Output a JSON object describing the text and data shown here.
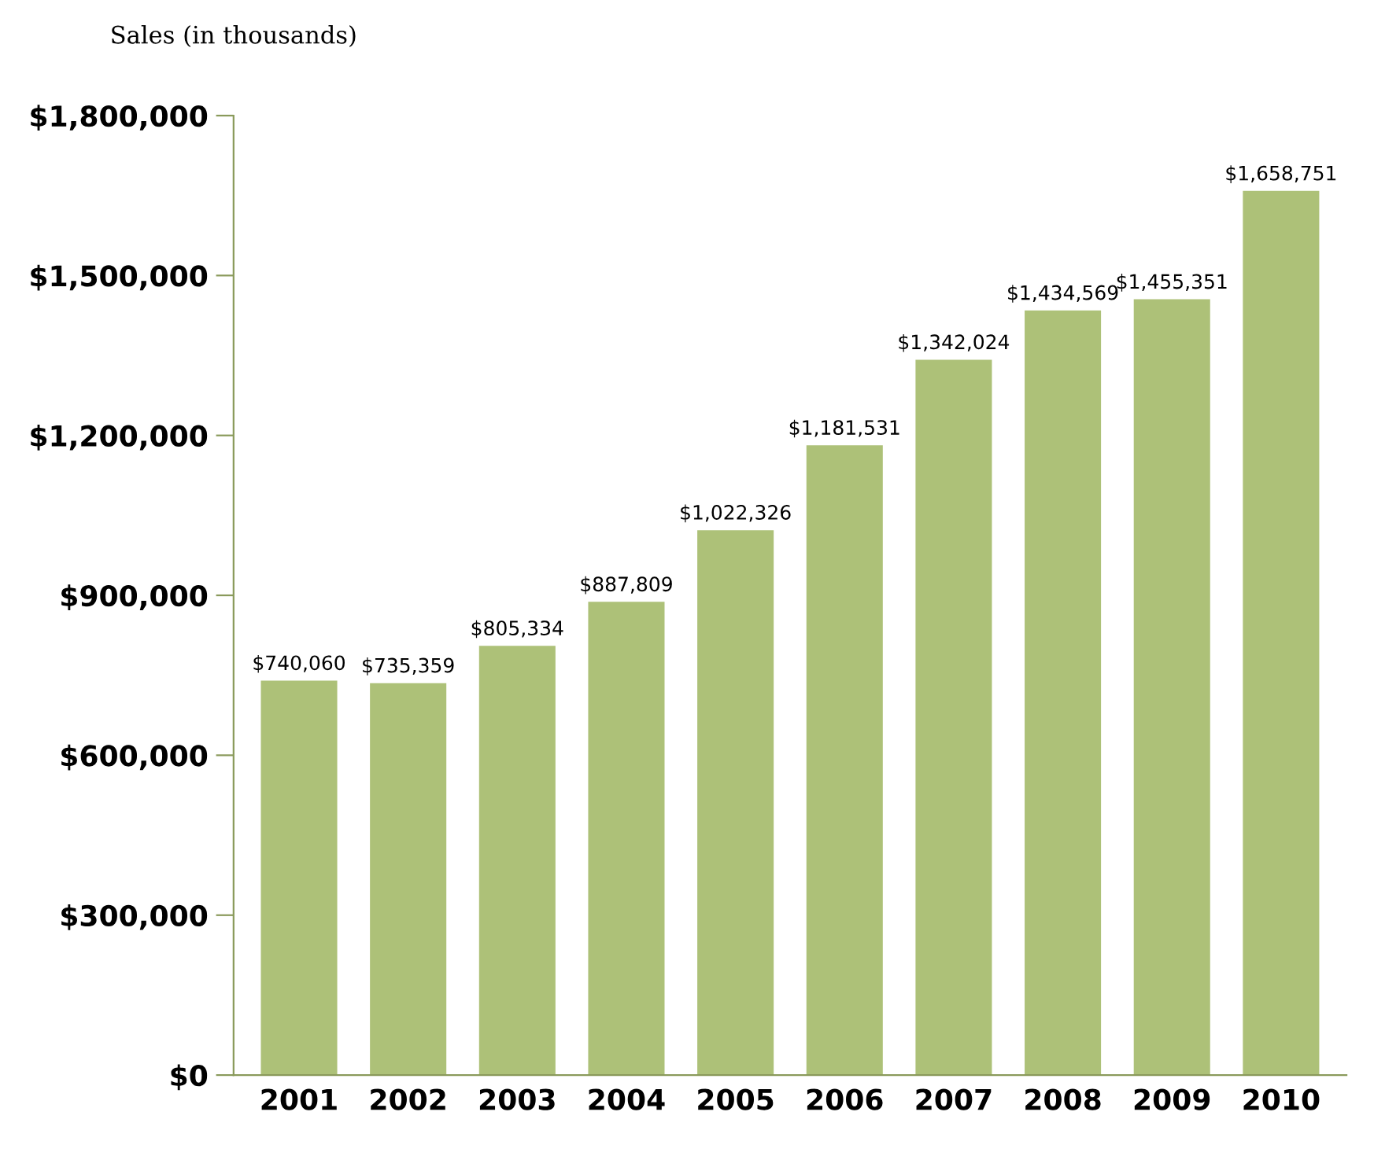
{
  "chart_data": {
    "type": "bar",
    "ylabel": "Sales (in thousands)",
    "categories": [
      "2001",
      "2002",
      "2003",
      "2004",
      "2005",
      "2006",
      "2007",
      "2008",
      "2009",
      "2010"
    ],
    "values": [
      740060,
      735359,
      805334,
      887809,
      1022326,
      1181531,
      1342024,
      1434569,
      1455351,
      1658751
    ],
    "value_labels": [
      "$740,060",
      "$735,359",
      "$805,334",
      "$887,809",
      "$1,022,326",
      "$1,181,531",
      "$1,342,024",
      "$1,434,569",
      "$1,455,351",
      "$1,658,751"
    ],
    "color": "#adc178",
    "ylim": [
      0,
      1800000
    ],
    "yticks": [
      {
        "value": 0,
        "label": "$0"
      },
      {
        "value": 300000,
        "label": "$300,000"
      },
      {
        "value": 600000,
        "label": "$600,000"
      },
      {
        "value": 900000,
        "label": "$900,000"
      },
      {
        "value": 1200000,
        "label": "$1,200,000"
      },
      {
        "value": 1500000,
        "label": "$1,500,000"
      },
      {
        "value": 1800000,
        "label": "$1,800,000"
      }
    ],
    "grid": false
  }
}
